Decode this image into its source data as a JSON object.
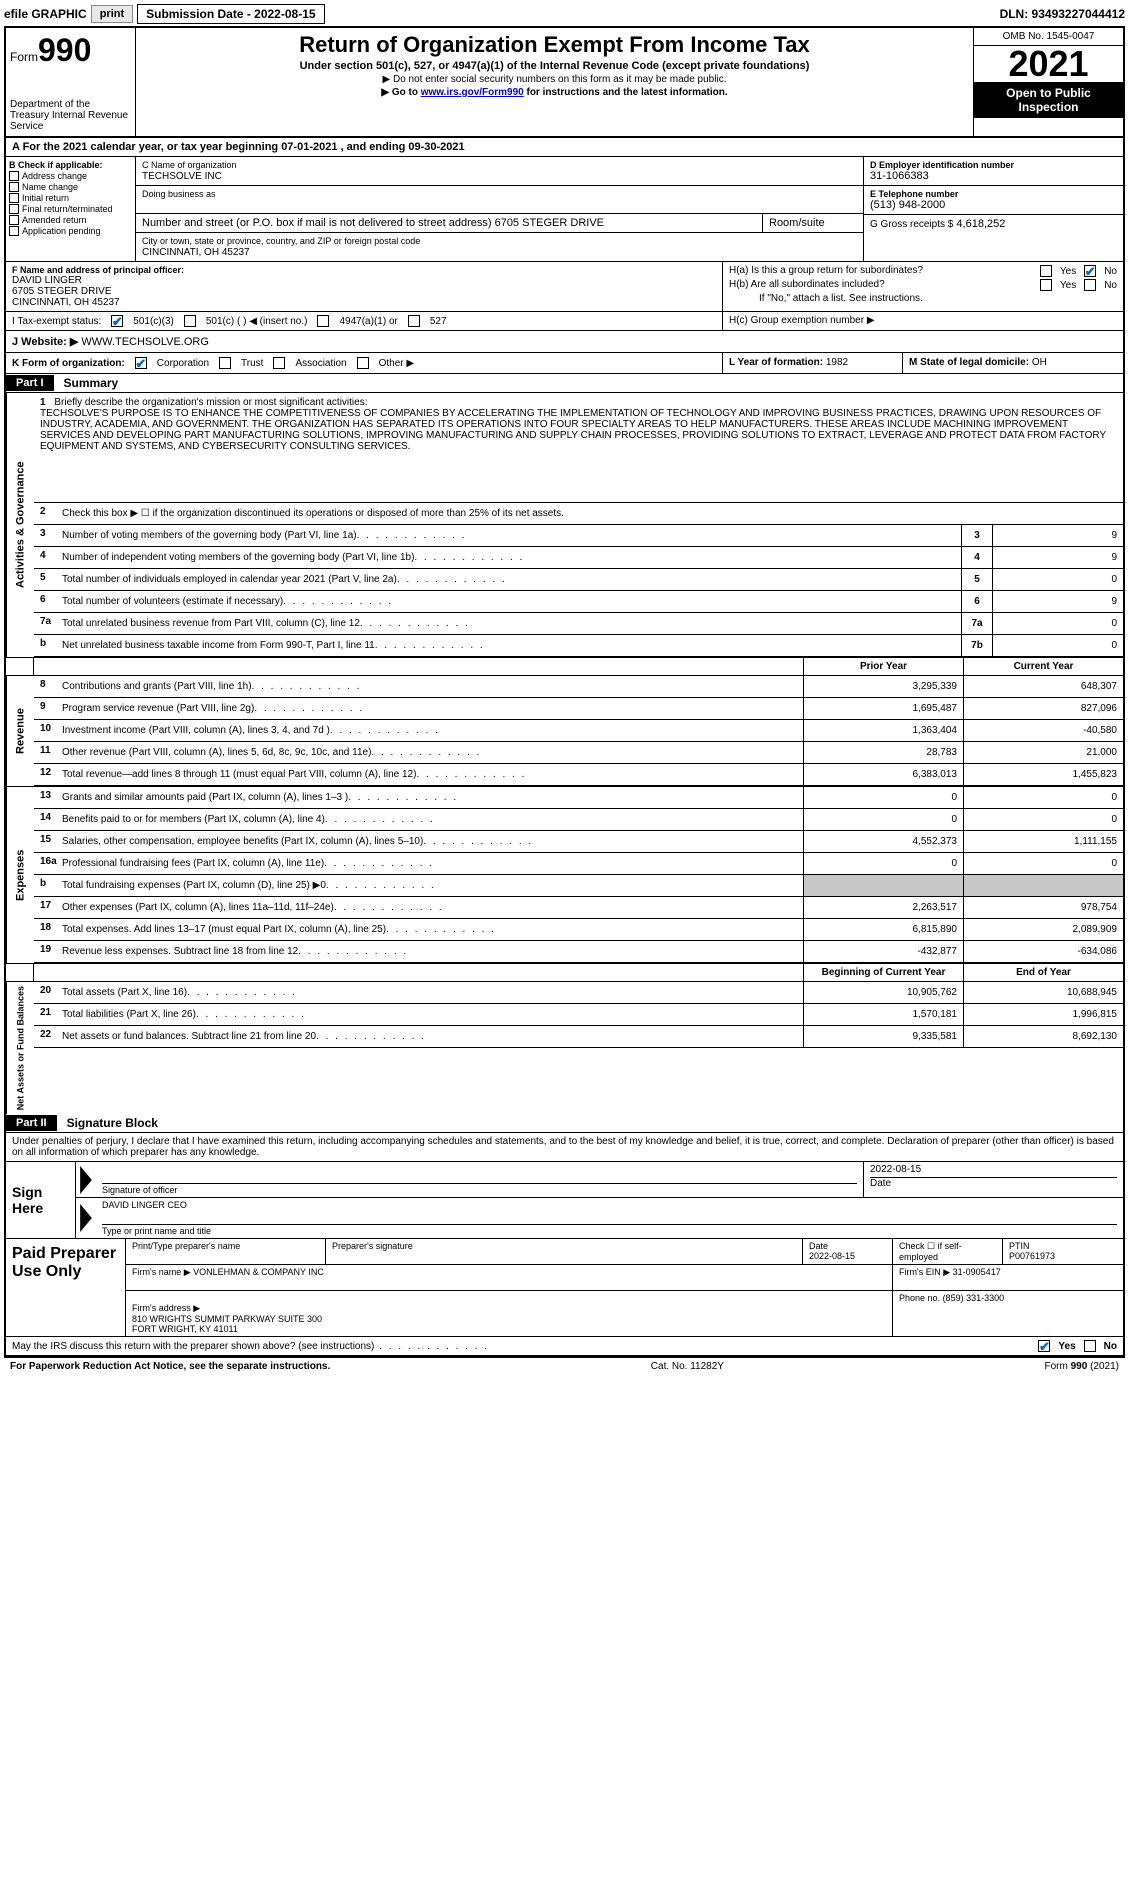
{
  "top_bar": {
    "efile_label": "efile GRAPHIC",
    "print_btn": "print",
    "submission_label": "Submission Date - 2022-08-15",
    "dln": "DLN: 93493227044412"
  },
  "header": {
    "form_prefix": "Form",
    "form_number": "990",
    "dept": "Department of the Treasury Internal Revenue Service",
    "title": "Return of Organization Exempt From Income Tax",
    "subtitle": "Under section 501(c), 527, or 4947(a)(1) of the Internal Revenue Code (except private foundations)",
    "note1": "▶ Do not enter social security numbers on this form as it may be made public.",
    "note2_prefix": "▶ Go to ",
    "note2_link": "www.irs.gov/Form990",
    "note2_suffix": " for instructions and the latest information.",
    "omb": "OMB No. 1545-0047",
    "year": "2021",
    "open_public": "Open to Public Inspection"
  },
  "row_a": "A For the 2021 calendar year, or tax year beginning 07-01-2021   , and ending 09-30-2021",
  "col_b": {
    "title": "B Check if applicable:",
    "items": [
      "Address change",
      "Name change",
      "Initial return",
      "Final return/terminated",
      "Amended return",
      "Application pending"
    ]
  },
  "col_c": {
    "name_label": "C Name of organization",
    "name": "TECHSOLVE INC",
    "dba_label": "Doing business as",
    "dba": "",
    "street_label": "Number and street (or P.O. box if mail is not delivered to street address)",
    "street": "6705 STEGER DRIVE",
    "room_label": "Room/suite",
    "room": "",
    "city_label": "City or town, state or province, country, and ZIP or foreign postal code",
    "city": "CINCINNATI, OH  45237"
  },
  "col_d": {
    "ein_label": "D Employer identification number",
    "ein": "31-1066383",
    "phone_label": "E Telephone number",
    "phone": "(513) 948-2000",
    "gross_label": "G Gross receipts $",
    "gross": "4,618,252"
  },
  "col_f": {
    "label": "F  Name and address of principal officer:",
    "name": "DAVID LINGER",
    "street": "6705 STEGER DRIVE",
    "city": "CINCINNATI, OH  45237"
  },
  "col_h": {
    "ha_label": "H(a)  Is this a group return for subordinates?",
    "hb_label": "H(b)  Are all subordinates included?",
    "hb_note": "If \"No,\" attach a list. See instructions.",
    "hc_label": "H(c)  Group exemption number ▶",
    "yes": "Yes",
    "no": "No"
  },
  "row_i": {
    "label": "I   Tax-exempt status:",
    "opt1": "501(c)(3)",
    "opt2": "501(c) (   ) ◀ (insert no.)",
    "opt3": "4947(a)(1) or",
    "opt4": "527"
  },
  "row_j": {
    "label": "J   Website: ▶",
    "value": "WWW.TECHSOLVE.ORG"
  },
  "row_k": {
    "label": "K Form of organization:",
    "opts": [
      "Corporation",
      "Trust",
      "Association",
      "Other ▶"
    ]
  },
  "row_l": {
    "label": "L Year of formation:",
    "value": "1982"
  },
  "row_m": {
    "label": "M State of legal domicile:",
    "value": "OH"
  },
  "part1": {
    "label": "Part I",
    "title": "Summary"
  },
  "mission": {
    "num": "1",
    "label": "Briefly describe the organization's mission or most significant activities:",
    "text": "TECHSOLVE'S PURPOSE IS TO ENHANCE THE COMPETITIVENESS OF COMPANIES BY ACCELERATING THE IMPLEMENTATION OF TECHNOLOGY AND IMPROVING BUSINESS PRACTICES, DRAWING UPON RESOURCES OF INDUSTRY, ACADEMIA, AND GOVERNMENT. THE ORGANIZATION HAS SEPARATED ITS OPERATIONS INTO FOUR SPECIALTY AREAS TO HELP MANUFACTURERS. THESE AREAS INCLUDE MACHINING IMPROVEMENT SERVICES AND DEVELOPING PART MANUFACTURING SOLUTIONS, IMPROVING MANUFACTURING AND SUPPLY CHAIN PROCESSES, PROVIDING SOLUTIONS TO EXTRACT, LEVERAGE AND PROTECT DATA FROM FACTORY EQUIPMENT AND SYSTEMS, AND CYBERSECURITY CONSULTING SERVICES."
  },
  "lines_gov": [
    {
      "num": "2",
      "desc": "Check this box ▶ ☐ if the organization discontinued its operations or disposed of more than 25% of its net assets.",
      "box": "",
      "val": ""
    },
    {
      "num": "3",
      "desc": "Number of voting members of the governing body (Part VI, line 1a)",
      "box": "3",
      "val": "9"
    },
    {
      "num": "4",
      "desc": "Number of independent voting members of the governing body (Part VI, line 1b)",
      "box": "4",
      "val": "9"
    },
    {
      "num": "5",
      "desc": "Total number of individuals employed in calendar year 2021 (Part V, line 2a)",
      "box": "5",
      "val": "0"
    },
    {
      "num": "6",
      "desc": "Total number of volunteers (estimate if necessary)",
      "box": "6",
      "val": "9"
    },
    {
      "num": "7a",
      "desc": "Total unrelated business revenue from Part VIII, column (C), line 12",
      "box": "7a",
      "val": "0"
    },
    {
      "num": "b",
      "desc": "Net unrelated business taxable income from Form 990-T, Part I, line 11",
      "box": "7b",
      "val": "0"
    }
  ],
  "col_headers": {
    "prior": "Prior Year",
    "current": "Current Year",
    "begin": "Beginning of Current Year",
    "end": "End of Year"
  },
  "lines_rev": [
    {
      "num": "8",
      "desc": "Contributions and grants (Part VIII, line 1h)",
      "prior": "3,295,339",
      "current": "648,307"
    },
    {
      "num": "9",
      "desc": "Program service revenue (Part VIII, line 2g)",
      "prior": "1,695,487",
      "current": "827,096"
    },
    {
      "num": "10",
      "desc": "Investment income (Part VIII, column (A), lines 3, 4, and 7d )",
      "prior": "1,363,404",
      "current": "-40,580"
    },
    {
      "num": "11",
      "desc": "Other revenue (Part VIII, column (A), lines 5, 6d, 8c, 9c, 10c, and 11e)",
      "prior": "28,783",
      "current": "21,000"
    },
    {
      "num": "12",
      "desc": "Total revenue—add lines 8 through 11 (must equal Part VIII, column (A), line 12)",
      "prior": "6,383,013",
      "current": "1,455,823"
    }
  ],
  "lines_exp": [
    {
      "num": "13",
      "desc": "Grants and similar amounts paid (Part IX, column (A), lines 1–3 )",
      "prior": "0",
      "current": "0"
    },
    {
      "num": "14",
      "desc": "Benefits paid to or for members (Part IX, column (A), line 4)",
      "prior": "0",
      "current": "0"
    },
    {
      "num": "15",
      "desc": "Salaries, other compensation, employee benefits (Part IX, column (A), lines 5–10)",
      "prior": "4,552,373",
      "current": "1,111,155"
    },
    {
      "num": "16a",
      "desc": "Professional fundraising fees (Part IX, column (A), line 11e)",
      "prior": "0",
      "current": "0"
    },
    {
      "num": "b",
      "desc": "Total fundraising expenses (Part IX, column (D), line 25) ▶0",
      "prior": "",
      "current": "",
      "shaded": true
    },
    {
      "num": "17",
      "desc": "Other expenses (Part IX, column (A), lines 11a–11d, 11f–24e)",
      "prior": "2,263,517",
      "current": "978,754"
    },
    {
      "num": "18",
      "desc": "Total expenses. Add lines 13–17 (must equal Part IX, column (A), line 25)",
      "prior": "6,815,890",
      "current": "2,089,909"
    },
    {
      "num": "19",
      "desc": "Revenue less expenses. Subtract line 18 from line 12",
      "prior": "-432,877",
      "current": "-634,086"
    }
  ],
  "lines_net": [
    {
      "num": "20",
      "desc": "Total assets (Part X, line 16)",
      "prior": "10,905,762",
      "current": "10,688,945"
    },
    {
      "num": "21",
      "desc": "Total liabilities (Part X, line 26)",
      "prior": "1,570,181",
      "current": "1,996,815"
    },
    {
      "num": "22",
      "desc": "Net assets or fund balances. Subtract line 21 from line 20",
      "prior": "9,335,581",
      "current": "8,692,130"
    }
  ],
  "side_labels": {
    "gov": "Activities & Governance",
    "rev": "Revenue",
    "exp": "Expenses",
    "net": "Net Assets or Fund Balances"
  },
  "part2": {
    "label": "Part II",
    "title": "Signature Block"
  },
  "sig": {
    "declaration": "Under penalties of perjury, I declare that I have examined this return, including accompanying schedules and statements, and to the best of my knowledge and belief, it is true, correct, and complete. Declaration of preparer (other than officer) is based on all information of which preparer has any knowledge.",
    "sign_here": "Sign Here",
    "sig_officer_label": "Signature of officer",
    "date_label": "Date",
    "date": "2022-08-15",
    "name_title_label": "Type or print name and title",
    "name_title": "DAVID LINGER  CEO"
  },
  "prep": {
    "label": "Paid Preparer Use Only",
    "print_name_label": "Print/Type preparer's name",
    "print_name": "",
    "sig_label": "Preparer's signature",
    "date_label": "Date",
    "date": "2022-08-15",
    "check_if_label": "Check ☐ if self-employed",
    "ptin_label": "PTIN",
    "ptin": "P00761973",
    "firm_name_label": "Firm's name     ▶",
    "firm_name": "VONLEHMAN & COMPANY INC",
    "firm_ein_label": "Firm's EIN ▶",
    "firm_ein": "31-0905417",
    "firm_addr_label": "Firm's address ▶",
    "firm_addr": "810 WRIGHTS SUMMIT PARKWAY SUITE 300\nFORT WRIGHT, KY  41011",
    "phone_label": "Phone no.",
    "phone": "(859) 331-3300"
  },
  "discuss": {
    "text": "May the IRS discuss this return with the preparer shown above? (see instructions)",
    "yes": "Yes",
    "no": "No"
  },
  "footer": {
    "left": "For Paperwork Reduction Act Notice, see the separate instructions.",
    "center": "Cat. No. 11282Y",
    "right": "Form 990 (2021)"
  }
}
